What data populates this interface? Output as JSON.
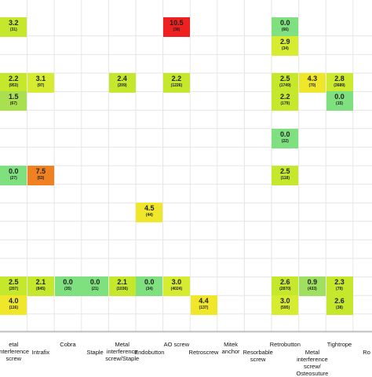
{
  "chart_data": {
    "type": "heatmap",
    "categories": [
      "Metal interference screw",
      "Intrafix",
      "Cobra",
      "Staple",
      "Metal interference screw/Staple",
      "Endobutton",
      "AO screw",
      "Retroscrew",
      "Mitek anchor",
      "Resorbable screw",
      "Retrobutton",
      "Metal interference screw/Osteosuture",
      "Tightrope",
      "Ro"
    ],
    "axis_labels": [
      "etal\ninterference\nscrew",
      "Intrafix",
      "Cobra",
      "Staple",
      "Metal\ninterference\nscrew/Staple",
      "Endobutton",
      "AO screw",
      "Retroscrew",
      "Mitek\nanchor",
      "Resorbable\nscrew",
      "Retrobutton",
      "Metal\ninterference\nscrew/\nOsteosuture",
      "Tightrope",
      "Ro"
    ],
    "cells": [
      {
        "col": 0,
        "row": 0,
        "value": "3.2",
        "n": "(31)",
        "color": "#c6e82c"
      },
      {
        "col": 6,
        "row": 0,
        "value": "10.5",
        "n": "(38)",
        "color": "#ee2020"
      },
      {
        "col": 10,
        "row": 0,
        "value": "0.0",
        "n": "(66)",
        "color": "#7fe07f"
      },
      {
        "col": 10,
        "row": 1,
        "value": "2.9",
        "n": "(34)",
        "color": "#d5ec30"
      },
      {
        "col": 0,
        "row": 3,
        "value": "2.2",
        "n": "(953)",
        "color": "#c6e82c"
      },
      {
        "col": 1,
        "row": 3,
        "value": "3.1",
        "n": "(97)",
        "color": "#d5ec30"
      },
      {
        "col": 4,
        "row": 3,
        "value": "2.4",
        "n": "(209)",
        "color": "#c6e82c"
      },
      {
        "col": 6,
        "row": 3,
        "value": "2.2",
        "n": "(1226)",
        "color": "#c6e82c"
      },
      {
        "col": 10,
        "row": 3,
        "value": "2.5",
        "n": "(1749)",
        "color": "#c6e82c"
      },
      {
        "col": 11,
        "row": 3,
        "value": "4.3",
        "n": "(70)",
        "color": "#f0e62a"
      },
      {
        "col": 12,
        "row": 3,
        "value": "2.8",
        "n": "(3689)",
        "color": "#cdea2e"
      },
      {
        "col": 0,
        "row": 4,
        "value": "1.5",
        "n": "(67)",
        "color": "#a8e050"
      },
      {
        "col": 10,
        "row": 4,
        "value": "2.2",
        "n": "(179)",
        "color": "#c6e82c"
      },
      {
        "col": 12,
        "row": 4,
        "value": "0.0",
        "n": "(15)",
        "color": "#7fe07f"
      },
      {
        "col": 10,
        "row": 6,
        "value": "0.0",
        "n": "(22)",
        "color": "#7fe07f"
      },
      {
        "col": 0,
        "row": 8,
        "value": "0.0",
        "n": "(27)",
        "color": "#7fe07f"
      },
      {
        "col": 1,
        "row": 8,
        "value": "7.5",
        "n": "(53)",
        "color": "#f08020"
      },
      {
        "col": 10,
        "row": 8,
        "value": "2.5",
        "n": "(118)",
        "color": "#c6e82c"
      },
      {
        "col": 5,
        "row": 10,
        "value": "4.5",
        "n": "(44)",
        "color": "#f0e62a"
      },
      {
        "col": 0,
        "row": 14,
        "value": "2.5",
        "n": "(207)",
        "color": "#c6e82c"
      },
      {
        "col": 1,
        "row": 14,
        "value": "2.1",
        "n": "(845)",
        "color": "#c6e82c"
      },
      {
        "col": 2,
        "row": 14,
        "value": "0.0",
        "n": "(35)",
        "color": "#7fe07f"
      },
      {
        "col": 3,
        "row": 14,
        "value": "0.0",
        "n": "(21)",
        "color": "#7fe07f"
      },
      {
        "col": 4,
        "row": 14,
        "value": "2.1",
        "n": "(1036)",
        "color": "#c6e82c"
      },
      {
        "col": 5,
        "row": 14,
        "value": "0.0",
        "n": "(34)",
        "color": "#7fe07f"
      },
      {
        "col": 6,
        "row": 14,
        "value": "3.0",
        "n": "(4024)",
        "color": "#d5ec30"
      },
      {
        "col": 10,
        "row": 14,
        "value": "2.6",
        "n": "(2870)",
        "color": "#c6e82c"
      },
      {
        "col": 11,
        "row": 14,
        "value": "0.9",
        "n": "(433)",
        "color": "#a0e060"
      },
      {
        "col": 12,
        "row": 14,
        "value": "2.3",
        "n": "(79)",
        "color": "#c6e82c"
      },
      {
        "col": 0,
        "row": 15,
        "value": "4.0",
        "n": "(116)",
        "color": "#f0e62a"
      },
      {
        "col": 7,
        "row": 15,
        "value": "4.4",
        "n": "(137)",
        "color": "#f0e62a"
      },
      {
        "col": 10,
        "row": 15,
        "value": "3.0",
        "n": "(595)",
        "color": "#d5ec30"
      },
      {
        "col": 12,
        "row": 15,
        "value": "2.6",
        "n": "(38)",
        "color": "#c6e82c"
      }
    ],
    "n_columns": 14,
    "n_rows": 16,
    "grid": true,
    "legend": "none"
  }
}
